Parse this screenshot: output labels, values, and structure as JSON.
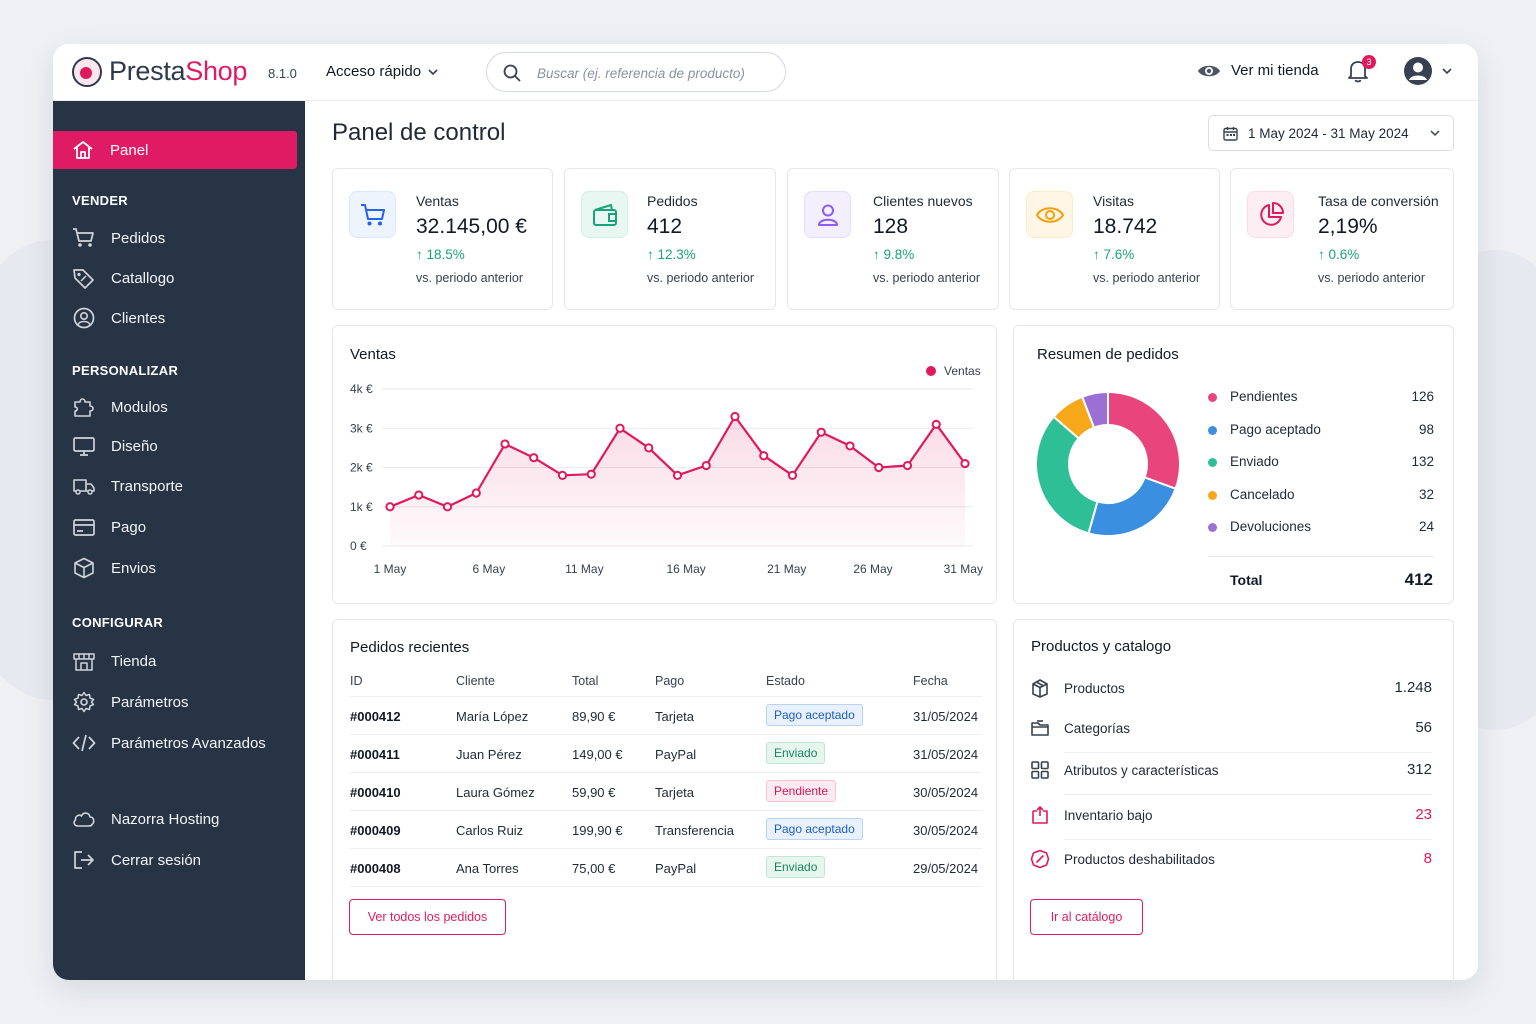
{
  "header": {
    "logo_presta": "Presta",
    "logo_shop": "Shop",
    "version": "8.1.0",
    "quick_access": "Acceso rápido",
    "search_placeholder": "Buscar (ej. referencia de producto)",
    "view_store": "Ver mi tienda",
    "notifications_count": "3"
  },
  "sidebar": {
    "active": "Panel",
    "sections": [
      {
        "title": "VENDER",
        "items": [
          "Pedidos",
          "Catallogo",
          "Clientes"
        ]
      },
      {
        "title": "PERSONALIZAR",
        "items": [
          "Modulos",
          "Diseño",
          "Transporte",
          "Pago",
          "Envios"
        ]
      },
      {
        "title": "CONFIGURAR",
        "items": [
          "Tienda",
          "Parámetros",
          "Parámetros Avanzados"
        ]
      }
    ],
    "hosting": "Nazorra Hosting",
    "logout": "Cerrar sesión"
  },
  "page": {
    "title": "Panel de control",
    "date_range": "1 May 2024 - 31 May 2024"
  },
  "kpis": [
    {
      "label": "Ventas",
      "value": "32.145,00 €",
      "delta": "18.5%",
      "sub": "vs. periodo anterior",
      "icon": "cart-icon",
      "color": "#2563eb"
    },
    {
      "label": "Pedidos",
      "value": "412",
      "delta": "12.3%",
      "sub": "vs. periodo anterior",
      "icon": "wallet-icon",
      "color": "#1aa37a"
    },
    {
      "label": "Clientes nuevos",
      "value": "128",
      "delta": "9.8%",
      "sub": "vs. periodo anterior",
      "icon": "user-icon",
      "color": "#8b5cf6"
    },
    {
      "label": "Visitas",
      "value": "18.742",
      "delta": "7.6%",
      "sub": "vs. periodo anterior",
      "icon": "eye-icon",
      "color": "#f59e0b"
    },
    {
      "label": "Tasa de conversión",
      "value": "2,19%",
      "delta": "0.6%",
      "sub": "vs. periodo anterior",
      "icon": "pie-chart-icon",
      "color": "#e0195c"
    }
  ],
  "sales_card": {
    "title": "Ventas"
  },
  "chart_data": {
    "type": "line",
    "title": "Ventas",
    "series": [
      {
        "name": "Ventas",
        "color": "#e0195c",
        "values": [
          1000,
          1300,
          1000,
          1350,
          2600,
          2250,
          1800,
          1830,
          3000,
          2500,
          1800,
          2050,
          3300,
          2300,
          1800,
          2900,
          2550,
          2000,
          2050,
          3100,
          2100
        ]
      }
    ],
    "x_tick_labels": [
      "1 May",
      "6 May",
      "11 May",
      "16 May",
      "21 May",
      "26 May",
      "31 May"
    ],
    "y_tick_labels": [
      "4k €",
      "3k €",
      "2k €",
      "1k €",
      "0 €"
    ],
    "ylim": [
      0,
      4000
    ],
    "grid": true,
    "legend": "top-right"
  },
  "orders_summary": {
    "title": "Resumen de pedidos",
    "items": [
      {
        "label": "Pendientes",
        "value": 126,
        "color": "#e8457c"
      },
      {
        "label": "Pago aceptado",
        "value": 98,
        "color": "#3b8fe0"
      },
      {
        "label": "Enviado",
        "value": 132,
        "color": "#2ebf97"
      },
      {
        "label": "Cancelado",
        "value": 32,
        "color": "#f6a819"
      },
      {
        "label": "Devoluciones",
        "value": 24,
        "color": "#9b6fd3"
      }
    ],
    "total_label": "Total",
    "total_value": "412"
  },
  "recent_orders": {
    "title": "Pedidos recientes",
    "columns": [
      "ID",
      "Cliente",
      "Total",
      "Pago",
      "Estado",
      "Fecha"
    ],
    "rows": [
      {
        "id": "#000412",
        "client": "María López",
        "total": "89,90 €",
        "payment": "Tarjeta",
        "status": "Pago aceptado",
        "status_type": "blue",
        "date": "31/05/2024"
      },
      {
        "id": "#000411",
        "client": "Juan Pérez",
        "total": "149,00 €",
        "payment": "PayPal",
        "status": "Enviado",
        "status_type": "green",
        "date": "31/05/2024"
      },
      {
        "id": "#000410",
        "client": "Laura Gómez",
        "total": "59,90 €",
        "payment": "Tarjeta",
        "status": "Pendiente",
        "status_type": "pink",
        "date": "30/05/2024"
      },
      {
        "id": "#000409",
        "client": "Carlos Ruiz",
        "total": "199,90 €",
        "payment": "Transferencia",
        "status": "Pago aceptado",
        "status_type": "blue",
        "date": "30/05/2024"
      },
      {
        "id": "#000408",
        "client": "Ana Torres",
        "total": "75,00 €",
        "payment": "PayPal",
        "status": "Enviado",
        "status_type": "green",
        "date": "29/05/2024"
      }
    ],
    "button": "Ver todos los pedidos"
  },
  "catalog": {
    "title": "Productos y catalogo",
    "items": [
      {
        "label": "Productos",
        "value": "1.248",
        "icon": "box-icon",
        "alert": false
      },
      {
        "label": "Categorías",
        "value": "56",
        "icon": "folder-icon",
        "alert": false
      },
      {
        "label": "Atributos y características",
        "value": "312",
        "icon": "grid-icon",
        "alert": false
      },
      {
        "label": "Inventario bajo",
        "value": "23",
        "icon": "low-stock-icon",
        "alert": true
      },
      {
        "label": "Productos deshabilitados",
        "value": "8",
        "icon": "disabled-icon",
        "alert": true
      }
    ],
    "button": "Ir al catálogo"
  }
}
